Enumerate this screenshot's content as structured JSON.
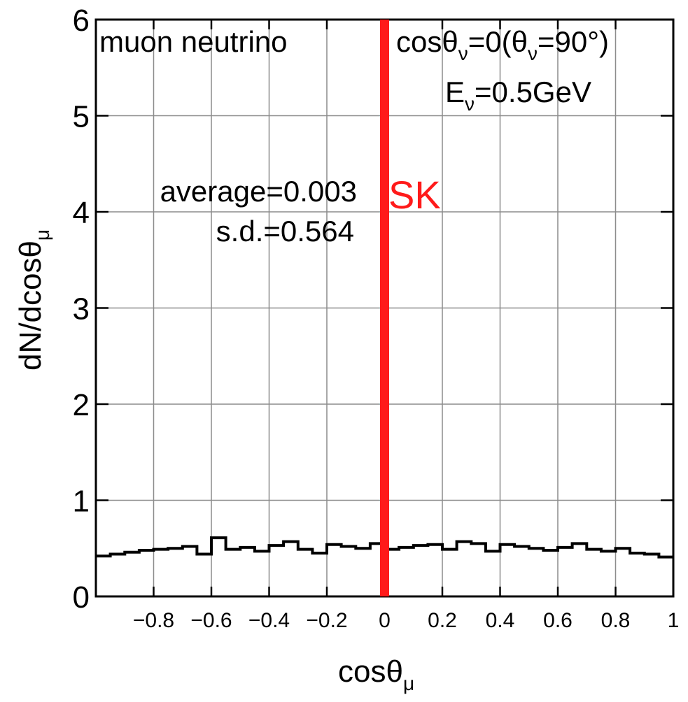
{
  "chart_data": {
    "type": "line",
    "title": "",
    "xlabel": {
      "main": "cosθ",
      "sub": "μ"
    },
    "ylabel": {
      "main": "dN/dcosθ",
      "sub": "μ"
    },
    "xlim": [
      -1,
      1
    ],
    "ylim": [
      0,
      6
    ],
    "grid": true,
    "x_tick_labels": [
      "−0.8",
      "−0.6",
      "−0.4",
      "−0.2",
      "0",
      "0.2",
      "0.4",
      "0.6",
      "0.8",
      "1"
    ],
    "x_ticks": [
      -0.8,
      -0.6,
      -0.4,
      -0.2,
      0,
      0.2,
      0.4,
      0.6,
      0.8,
      1
    ],
    "y_tick_labels": [
      "0",
      "1",
      "2",
      "3",
      "4",
      "5",
      "6"
    ],
    "y_ticks": [
      0,
      1,
      2,
      3,
      4,
      5,
      6
    ],
    "histogram": {
      "bin_edges": [
        -1.0,
        -0.95,
        -0.9,
        -0.85,
        -0.8,
        -0.75,
        -0.7,
        -0.65,
        -0.6,
        -0.55,
        -0.5,
        -0.45,
        -0.4,
        -0.35,
        -0.3,
        -0.25,
        -0.2,
        -0.15,
        -0.1,
        -0.05,
        0.0,
        0.05,
        0.1,
        0.15,
        0.2,
        0.25,
        0.3,
        0.35,
        0.4,
        0.45,
        0.5,
        0.55,
        0.6,
        0.65,
        0.7,
        0.75,
        0.8,
        0.85,
        0.9,
        0.95,
        1.0
      ],
      "values": [
        0.42,
        0.44,
        0.46,
        0.48,
        0.49,
        0.5,
        0.52,
        0.44,
        0.61,
        0.49,
        0.51,
        0.47,
        0.53,
        0.57,
        0.49,
        0.45,
        0.54,
        0.52,
        0.5,
        0.55,
        0.49,
        0.51,
        0.53,
        0.54,
        0.49,
        0.57,
        0.55,
        0.47,
        0.54,
        0.52,
        0.5,
        0.48,
        0.51,
        0.55,
        0.49,
        0.47,
        0.5,
        0.45,
        0.44,
        0.41
      ]
    },
    "vertical_line": {
      "x": 0,
      "label": "SK",
      "color": "#ff1a1a"
    },
    "annotations": {
      "particle": "muon neutrino",
      "angle": {
        "p1": "cosθ",
        "s1": "ν",
        "p2": "=0(θ",
        "s2": "ν",
        "p3": "=90°)"
      },
      "energy": {
        "p1": "E",
        "s1": "ν",
        "p2": "=0.5GeV"
      },
      "average": "average=0.003",
      "sd": "s.d.=0.564"
    },
    "colors": {
      "line": "#000000",
      "grid": "#8c8c8c",
      "marker": "#ff1a1a"
    }
  }
}
